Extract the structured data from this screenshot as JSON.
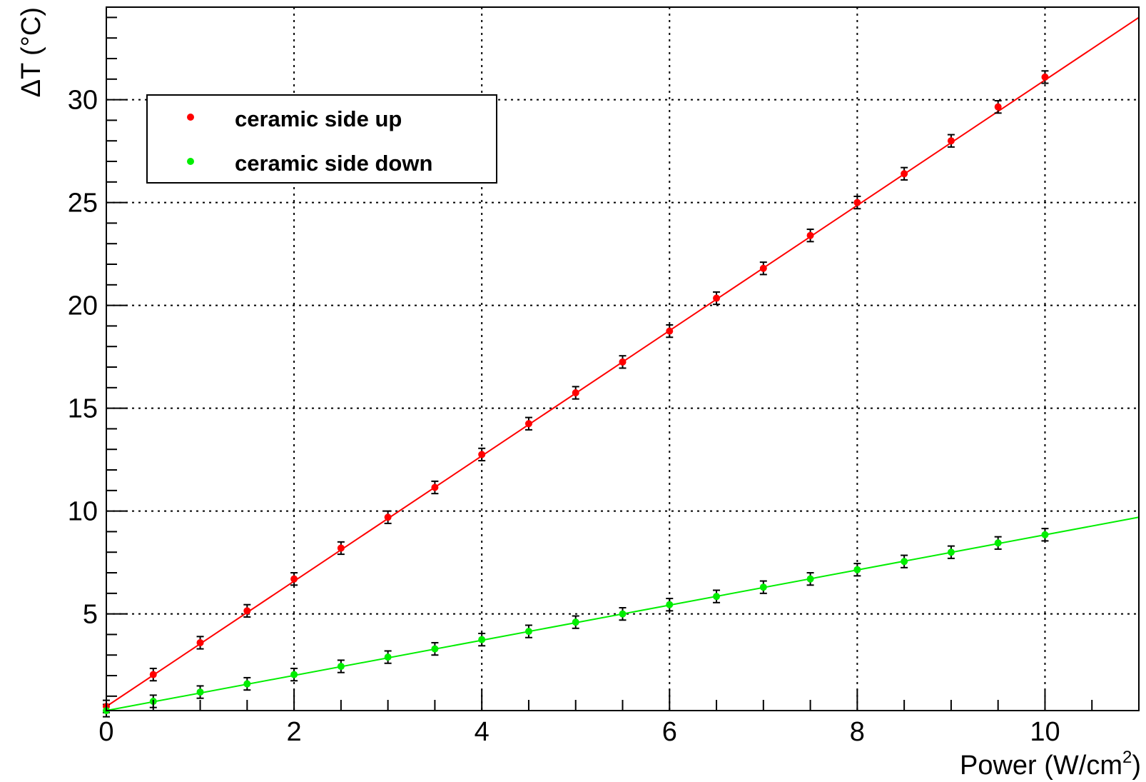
{
  "chart_data": {
    "type": "scatter",
    "xlabel": "Power (W/cm",
    "xlabel_sup": "2",
    "xlabel_close": ")",
    "ylabel": "ΔT (°C)",
    "xlim": [
      0,
      11
    ],
    "ylim": [
      0.3,
      34.5
    ],
    "grid": true,
    "legend_position": "top-left",
    "x_ticks": [
      0,
      2,
      4,
      6,
      8,
      10
    ],
    "y_ticks": [
      5,
      10,
      15,
      20,
      25,
      30
    ],
    "series": [
      {
        "name": "ceramic side up",
        "color": "#ff0000",
        "x": [
          0,
          0.5,
          1,
          1.5,
          2,
          2.5,
          3,
          3.5,
          4,
          4.5,
          5,
          5.5,
          6,
          6.5,
          7,
          7.5,
          8,
          8.5,
          9,
          9.5,
          10
        ],
        "y": [
          0.5,
          2.05,
          3.6,
          5.15,
          6.7,
          8.2,
          9.7,
          11.15,
          12.75,
          14.25,
          15.75,
          17.25,
          18.75,
          20.35,
          21.8,
          23.4,
          25.0,
          26.4,
          28.0,
          29.65,
          31.1
        ],
        "error": 0.3,
        "fit": {
          "x": [
            0,
            11
          ],
          "y": [
            0.5,
            34.0
          ]
        }
      },
      {
        "name": "ceramic side down",
        "color": "#00ee00",
        "x": [
          0,
          0.5,
          1,
          1.5,
          2,
          2.5,
          3,
          3.5,
          4,
          4.5,
          5,
          5.5,
          6,
          6.5,
          7,
          7.5,
          8,
          8.5,
          9,
          9.5,
          10
        ],
        "y": [
          0.3,
          0.75,
          1.2,
          1.6,
          2.05,
          2.45,
          2.9,
          3.3,
          3.75,
          4.15,
          4.6,
          5.0,
          5.45,
          5.85,
          6.3,
          6.7,
          7.15,
          7.55,
          8.0,
          8.45,
          8.85
        ],
        "error": 0.3,
        "fit": {
          "x": [
            0,
            11
          ],
          "y": [
            0.3,
            9.7
          ]
        }
      }
    ]
  }
}
